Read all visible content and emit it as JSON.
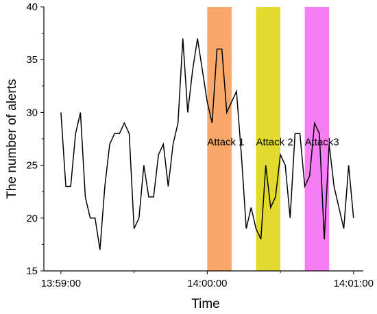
{
  "chart_data": {
    "type": "line",
    "title": "",
    "xlabel": "Time",
    "ylabel": "The number of alerts",
    "xlim": [
      "13:58:53",
      "14:01:04"
    ],
    "ylim": [
      15,
      40
    ],
    "x_ticks": [
      "13:59:00",
      "14:00:00",
      "14:01:00"
    ],
    "y_ticks": [
      15,
      20,
      25,
      30,
      35,
      40
    ],
    "grid": false,
    "series": [
      {
        "color": "#000000",
        "x": [
          "13:59:00",
          "13:59:02",
          "13:59:04",
          "13:59:06",
          "13:59:08",
          "13:59:10",
          "13:59:12",
          "13:59:14",
          "13:59:16",
          "13:59:18",
          "13:59:20",
          "13:59:22",
          "13:59:24",
          "13:59:26",
          "13:59:28",
          "13:59:30",
          "13:59:32",
          "13:59:34",
          "13:59:36",
          "13:59:38",
          "13:59:40",
          "13:59:42",
          "13:59:44",
          "13:59:46",
          "13:59:48",
          "13:59:50",
          "13:59:52",
          "13:59:54",
          "13:59:56",
          "13:59:58",
          "14:00:00",
          "14:00:02",
          "14:00:04",
          "14:00:06",
          "14:00:08",
          "14:00:10",
          "14:00:12",
          "14:00:14",
          "14:00:16",
          "14:00:18",
          "14:00:20",
          "14:00:22",
          "14:00:24",
          "14:00:26",
          "14:00:28",
          "14:00:30",
          "14:00:32",
          "14:00:34",
          "14:00:36",
          "14:00:38",
          "14:00:40",
          "14:00:42",
          "14:00:44",
          "14:00:46",
          "14:00:48",
          "14:00:50",
          "14:00:52",
          "14:00:54",
          "14:00:56",
          "14:00:58",
          "14:01:00"
        ],
        "values": [
          30,
          23,
          23,
          28,
          30,
          22,
          20,
          20,
          17,
          23,
          27,
          28,
          28,
          29,
          28,
          19,
          20,
          25,
          22,
          22,
          26,
          27,
          23,
          27,
          29,
          37,
          30,
          34,
          37,
          34,
          31,
          29,
          36,
          36,
          30,
          31,
          32,
          26,
          19,
          21,
          19,
          18,
          25,
          21,
          22,
          26,
          25,
          20,
          28,
          28,
          23,
          24,
          29,
          28,
          18,
          27,
          23,
          21,
          19,
          25,
          20
        ]
      }
    ],
    "bands": [
      {
        "label": "Attack 1",
        "x_start": "14:00:00",
        "x_end": "14:00:10",
        "color": "#F7A86A"
      },
      {
        "label": "Attack 2",
        "x_start": "14:00:20",
        "x_end": "14:00:30",
        "color": "#E2DA2E"
      },
      {
        "label": "Attack3",
        "x_start": "14:00:40",
        "x_end": "14:00:50",
        "color": "#F57EF2"
      }
    ],
    "annotations": [
      {
        "text": "Attack 1",
        "x": "14:00:00",
        "y": 27.2
      },
      {
        "text": "Attack 2",
        "x": "14:00:20",
        "y": 27.2
      },
      {
        "text": "Attack3",
        "x": "14:00:40",
        "y": 27.2
      }
    ]
  }
}
